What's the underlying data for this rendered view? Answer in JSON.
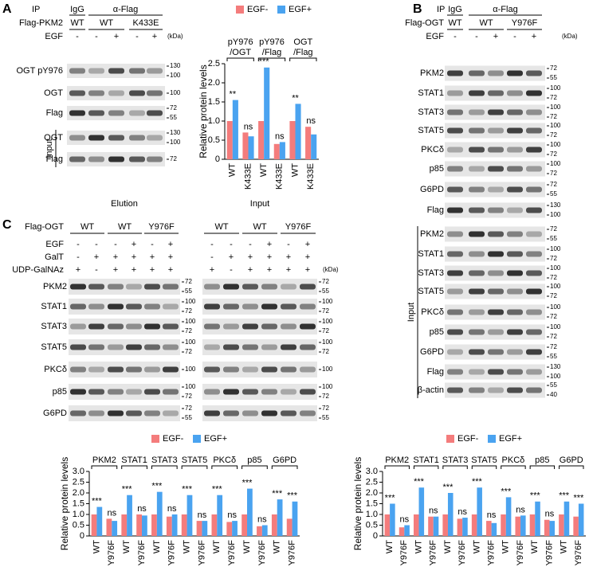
{
  "panel_a": {
    "label": "A",
    "ip": {
      "label": "IP",
      "igg": "IgG",
      "antibody": "α-Flag"
    },
    "construct": {
      "label": "Flag-PKM2",
      "groups": [
        "WT",
        "WT",
        "K433E"
      ]
    },
    "treatment": {
      "label": "EGF",
      "lanes": [
        "-",
        "-",
        "+",
        "-",
        "+"
      ]
    },
    "kda": "(kDa)",
    "ip_rows": [
      {
        "label": "OGT pY976",
        "markers": [
          130,
          100
        ]
      },
      {
        "label": "OGT",
        "markers": [
          100
        ]
      },
      {
        "label": "Flag",
        "markers": [
          72,
          55
        ]
      }
    ],
    "input_label": "Input",
    "input_rows": [
      {
        "label": "OGT",
        "markers": [
          130,
          100
        ]
      },
      {
        "label": "Flag",
        "markers": [
          72
        ]
      }
    ]
  },
  "panel_b": {
    "label": "B",
    "ip": {
      "label": "IP",
      "igg": "IgG",
      "antibody": "α-Flag"
    },
    "construct": {
      "label": "Flag-OGT",
      "groups": [
        "WT",
        "WT",
        "Y976F"
      ]
    },
    "treatment": {
      "label": "EGF",
      "lanes": [
        "-",
        "-",
        "+",
        "-",
        "+"
      ]
    },
    "kda": "(kDa)",
    "ip_rows": [
      {
        "label": "PKM2",
        "markers": [
          72,
          55
        ]
      },
      {
        "label": "STAT1",
        "markers": [
          100,
          72
        ]
      },
      {
        "label": "STAT3",
        "markers": [
          100,
          72
        ]
      },
      {
        "label": "STAT5",
        "markers": [
          100,
          72
        ]
      },
      {
        "label": "PKCδ",
        "markers": [
          100,
          72
        ]
      },
      {
        "label": "p85",
        "markers": [
          100,
          72
        ]
      },
      {
        "label": "G6PD",
        "markers": [
          72,
          55
        ]
      },
      {
        "label": "Flag",
        "markers": [
          130,
          100
        ]
      }
    ],
    "input_label": "Input",
    "input_rows": [
      {
        "label": "PKM2",
        "markers": [
          72,
          55
        ]
      },
      {
        "label": "STAT1",
        "markers": [
          100,
          72
        ]
      },
      {
        "label": "STAT3",
        "markers": [
          100,
          72
        ]
      },
      {
        "label": "STAT5",
        "markers": [
          100,
          72
        ]
      },
      {
        "label": "PKCδ",
        "markers": [
          100,
          72
        ]
      },
      {
        "label": "p85",
        "markers": [
          100,
          72
        ]
      },
      {
        "label": "G6PD",
        "markers": [
          72,
          55
        ]
      },
      {
        "label": "Flag",
        "markers": [
          130,
          100
        ]
      },
      {
        "label": "β-actin",
        "markers": [
          55,
          40
        ]
      }
    ]
  },
  "panel_c": {
    "label": "C",
    "elution": "Elution",
    "input": "Input",
    "construct": {
      "label": "Flag-OGT",
      "elution_groups": [
        "WT",
        "WT",
        "Y976F"
      ],
      "input_groups": [
        "WT",
        "WT",
        "Y976F"
      ]
    },
    "treatments": [
      {
        "label": "EGF",
        "elution": [
          "-",
          "-",
          "-",
          "+",
          "-",
          "+"
        ],
        "input": [
          "-",
          "-",
          "-",
          "+",
          "-",
          "+"
        ]
      },
      {
        "label": "GalT",
        "elution": [
          "-",
          "+",
          "+",
          "+",
          "+",
          "+"
        ],
        "input": [
          "-",
          "+",
          "+",
          "+",
          "+",
          "+"
        ]
      },
      {
        "label": "UDP-GalNAz",
        "elution": [
          "+",
          "-",
          "+",
          "+",
          "+",
          "+"
        ],
        "input": [
          "+",
          "-",
          "+",
          "+",
          "+",
          "+"
        ]
      }
    ],
    "kda": "(kDa)",
    "rows": [
      {
        "label": "PKM2",
        "markers": [
          72,
          55
        ]
      },
      {
        "label": "STAT1",
        "markers": [
          100,
          72
        ]
      },
      {
        "label": "STAT3",
        "markers": [
          100,
          72
        ]
      },
      {
        "label": "STAT5",
        "markers": [
          100,
          72
        ]
      },
      {
        "label": "PKCδ",
        "markers": [
          100
        ]
      },
      {
        "label": "p85",
        "markers": [
          100,
          72
        ]
      },
      {
        "label": "G6PD",
        "markers": [
          72,
          55
        ]
      }
    ]
  },
  "chart_data": [
    {
      "type": "bar",
      "ylabel": "Relative protein levels",
      "groups": [
        "pY976\n/OGT",
        "pY976\n/Flag",
        "OGT\n/Flag"
      ],
      "categories": [
        "WT",
        "K433E",
        "WT",
        "K433E",
        "WT",
        "K433E"
      ],
      "series": [
        {
          "name": "EGF-",
          "color": "#f47c7c",
          "values": [
            1.0,
            0.7,
            1.0,
            0.4,
            1.0,
            0.85
          ]
        },
        {
          "name": "EGF+",
          "color": "#4aa3f0",
          "values": [
            1.55,
            0.6,
            2.4,
            0.45,
            1.45,
            0.65
          ]
        }
      ],
      "significance": [
        "**",
        "ns",
        "***",
        "ns",
        "**",
        "ns"
      ],
      "ylim": [
        0,
        2.5
      ],
      "yticks": [
        0,
        0.5,
        {
          "value": 1,
          "label": "1.0"
        },
        1.5,
        {
          "value": 2,
          "label": "2.0"
        },
        2.5
      ]
    },
    {
      "type": "bar",
      "ylabel": "Relative protein levels",
      "groups": [
        "PKM2",
        "STAT1",
        "STAT3",
        "STAT5",
        "PKCδ",
        "p85",
        "G6PD"
      ],
      "categories": [
        "WT",
        "Y976F",
        "WT",
        "Y976F",
        "WT",
        "Y976F",
        "WT",
        "Y976F",
        "WT",
        "Y976F",
        "WT",
        "Y976F",
        "WT",
        "Y976F"
      ],
      "series": [
        {
          "name": "EGF-",
          "color": "#f47c7c",
          "values": [
            1,
            0.8,
            1,
            1,
            1,
            0.9,
            1,
            0.7,
            1,
            0.65,
            1,
            0.45,
            1,
            0.8
          ]
        },
        {
          "name": "EGF+",
          "color": "#4aa3f0",
          "values": [
            1.35,
            0.7,
            1.9,
            0.95,
            2.05,
            1.0,
            1.9,
            0.7,
            1.9,
            0.7,
            2.2,
            0.5,
            1.7,
            1.6
          ]
        }
      ],
      "significance": [
        "***",
        "ns",
        "***",
        "ns",
        "***",
        "ns",
        "***",
        "ns",
        "***",
        "ns",
        "***",
        "ns",
        "***",
        "***"
      ],
      "ylim": [
        0,
        3
      ],
      "yticks": [
        0,
        0.5,
        {
          "value": 1,
          "label": "1.0"
        },
        1.5,
        {
          "value": 2,
          "label": "2.0"
        },
        2.5,
        {
          "value": 3,
          "label": "3.0"
        }
      ]
    },
    {
      "type": "bar",
      "ylabel": "Relative protein levels",
      "groups": [
        "PKM2",
        "STAT1",
        "STAT3",
        "STAT5",
        "PKCδ",
        "p85",
        "G6PD"
      ],
      "categories": [
        "WT",
        "Y976F",
        "WT",
        "Y976F",
        "WT",
        "Y976F",
        "WT",
        "Y976F",
        "WT",
        "Y976F",
        "WT",
        "Y976F",
        "WT",
        "Y976F"
      ],
      "series": [
        {
          "name": "EGF-",
          "color": "#f47c7c",
          "values": [
            1,
            0.4,
            1,
            0.9,
            1,
            0.8,
            1,
            0.7,
            1,
            0.9,
            1,
            0.75,
            1,
            0.9
          ]
        },
        {
          "name": "EGF+",
          "color": "#4aa3f0",
          "values": [
            1.5,
            0.5,
            2.25,
            0.9,
            2.0,
            0.85,
            2.25,
            0.6,
            1.8,
            0.95,
            1.6,
            0.7,
            1.6,
            1.5
          ]
        }
      ],
      "significance": [
        "***",
        "ns",
        "***",
        "ns",
        "***",
        "ns",
        "***",
        "ns",
        "***",
        "ns",
        "***",
        "ns",
        "***",
        "***"
      ],
      "ylim": [
        0,
        3
      ],
      "yticks": [
        0,
        0.5,
        {
          "value": 1,
          "label": "1.0"
        },
        1.5,
        {
          "value": 2,
          "label": "2.0"
        },
        2.5,
        {
          "value": 3,
          "label": "3.0"
        }
      ]
    }
  ]
}
